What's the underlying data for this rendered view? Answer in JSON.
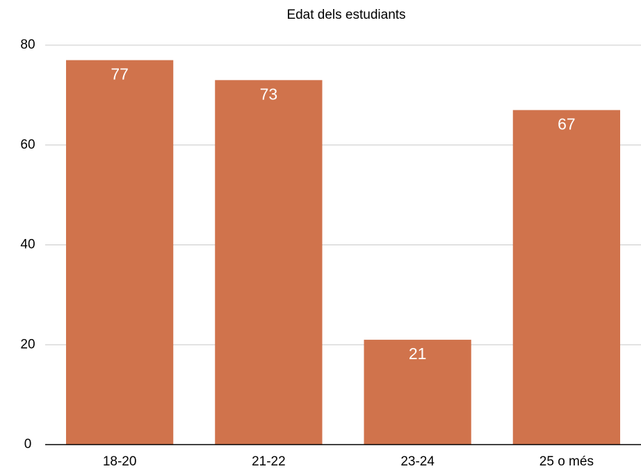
{
  "chart_data": {
    "type": "bar",
    "title": "Edat dels estudiants",
    "categories": [
      "18-20",
      "21-22",
      "23-24",
      "25 o més"
    ],
    "values": [
      77,
      73,
      21,
      67
    ],
    "color": "#d0734c",
    "ylim": [
      0,
      80
    ],
    "yticks": [
      0,
      20,
      40,
      60,
      80
    ],
    "grid": true
  }
}
